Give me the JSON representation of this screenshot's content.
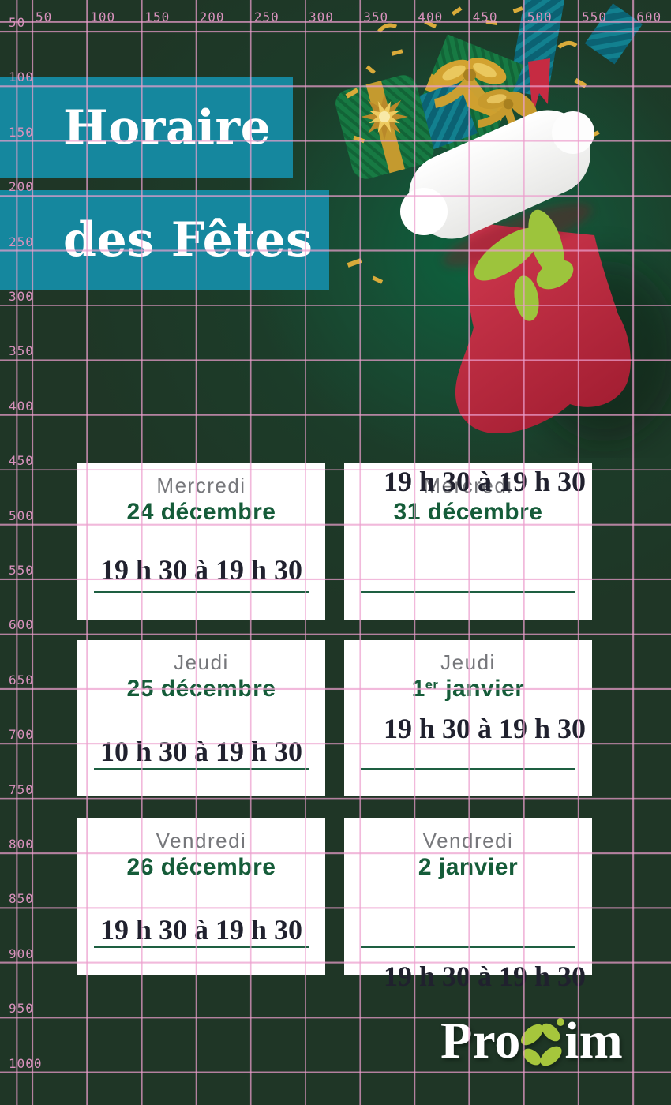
{
  "header": {
    "line1": "Horaire",
    "line2": "des Fêtes"
  },
  "cards": [
    {
      "weekday": "Mercredi",
      "date": "24 décembre",
      "hours": "19 h 30 à 19 h 30"
    },
    {
      "weekday": "Mercredi",
      "date": "31 décembre",
      "hours": "19 h 30 à 19 h 30"
    },
    {
      "weekday": "Jeudi",
      "date": "25 décembre",
      "hours": "10 h 30 à 19 h 30"
    },
    {
      "weekday": "Jeudi",
      "date": "1",
      "date_sup": "er",
      "date_rest": " janvier",
      "hours": "19 h 30 à 19 h 30"
    },
    {
      "weekday": "Vendredi",
      "date": "26 décembre",
      "hours": "19 h 30 à 19 h 30"
    },
    {
      "weekday": "Vendredi",
      "date": "2 janvier",
      "hours": "19 h 30 à 19 h 30"
    }
  ],
  "logo": {
    "part1": "Pro",
    "part2": "im"
  },
  "grid": {
    "top_labels": [
      "50",
      "100",
      "150",
      "200",
      "250",
      "300",
      "350",
      "400",
      "450",
      "500",
      "550",
      "600"
    ],
    "left_labels": [
      "50",
      "100",
      "150",
      "200",
      "250",
      "300",
      "350",
      "400",
      "450",
      "500",
      "550",
      "600",
      "650",
      "700",
      "750",
      "800",
      "850",
      "900",
      "950",
      "1000"
    ]
  },
  "colors": {
    "background_green": "#1f3626",
    "glow_green": "#0a6640",
    "banner_teal": "#15879e",
    "date_green": "#155c39",
    "weekday_gray": "#76777b",
    "hours_ink": "#20212e",
    "underline_green": "#1e5f41",
    "grid_pink": "#ec9ecd",
    "stocking_red": "#c22a40",
    "proxim_leaf_green": "#a6c63c",
    "gold": "#d2a230"
  }
}
